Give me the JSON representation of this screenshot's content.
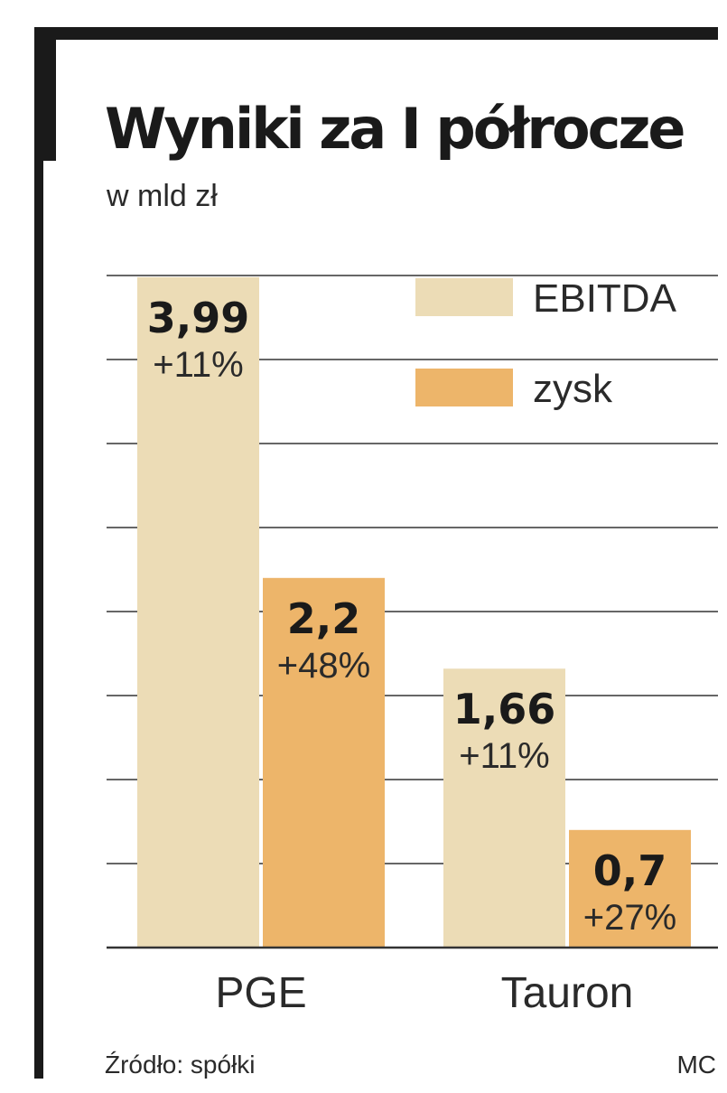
{
  "header": {
    "title": "Wyniki za I półrocze",
    "subtitle": "w mld zł"
  },
  "footer": {
    "source": "Źródło: spółki",
    "author": "MC"
  },
  "colors": {
    "ebitda": "#ecdcb6",
    "zysk": "#edb56a",
    "grid": "#333333",
    "frame": "#1a1a1a"
  },
  "chart_data": {
    "type": "bar",
    "categories": [
      "PGE",
      "Tauron"
    ],
    "series": [
      {
        "name": "EBITDA",
        "values": [
          3.99,
          1.66
        ],
        "labels": [
          "3,99",
          "1,66"
        ],
        "changes": [
          "+11%",
          "+11%"
        ]
      },
      {
        "name": "zysk",
        "values": [
          2.2,
          0.7
        ],
        "labels": [
          "2,2",
          "0,7"
        ],
        "changes": [
          "+48%",
          "+27%"
        ]
      }
    ],
    "title": "Wyniki za I półrocze",
    "subtitle": "w mld zł",
    "ylim": [
      0,
      4
    ],
    "grid": true,
    "legend": "top-right"
  }
}
